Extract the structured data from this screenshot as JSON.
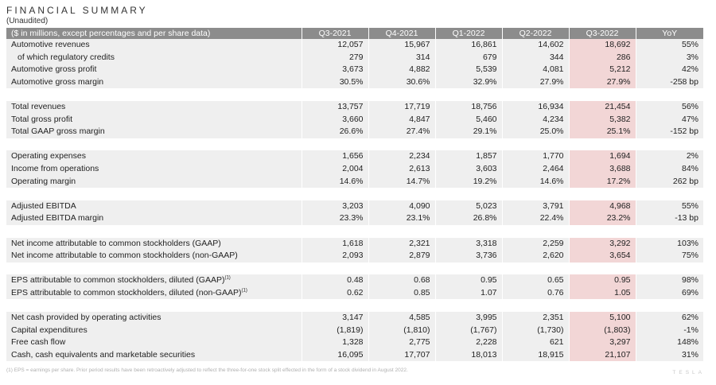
{
  "header": {
    "title": "FINANCIAL SUMMARY",
    "subtitle": "(Unaudited)"
  },
  "table": {
    "columns": [
      "($ in millions, except percentages and per share data)",
      "Q3-2021",
      "Q4-2021",
      "Q1-2022",
      "Q2-2022",
      "Q3-2022",
      "YoY"
    ],
    "highlight_color": "#f2d6d6",
    "groups": [
      [
        {
          "label": "Automotive revenues",
          "indent": false,
          "values": [
            "12,057",
            "15,967",
            "16,861",
            "14,602",
            "18,692",
            "55%"
          ]
        },
        {
          "label": "of which regulatory credits",
          "indent": true,
          "values": [
            "279",
            "314",
            "679",
            "344",
            "286",
            "3%"
          ]
        },
        {
          "label": "Automotive gross profit",
          "indent": false,
          "values": [
            "3,673",
            "4,882",
            "5,539",
            "4,081",
            "5,212",
            "42%"
          ]
        },
        {
          "label": "Automotive gross margin",
          "indent": false,
          "values": [
            "30.5%",
            "30.6%",
            "32.9%",
            "27.9%",
            "27.9%",
            "-258 bp"
          ]
        }
      ],
      [
        {
          "label": "Total revenues",
          "indent": false,
          "values": [
            "13,757",
            "17,719",
            "18,756",
            "16,934",
            "21,454",
            "56%"
          ]
        },
        {
          "label": "Total gross profit",
          "indent": false,
          "values": [
            "3,660",
            "4,847",
            "5,460",
            "4,234",
            "5,382",
            "47%"
          ]
        },
        {
          "label": "Total GAAP gross margin",
          "indent": false,
          "values": [
            "26.6%",
            "27.4%",
            "29.1%",
            "25.0%",
            "25.1%",
            "-152 bp"
          ]
        }
      ],
      [
        {
          "label": "Operating expenses",
          "indent": false,
          "values": [
            "1,656",
            "2,234",
            "1,857",
            "1,770",
            "1,694",
            "2%"
          ]
        },
        {
          "label": "Income from operations",
          "indent": false,
          "values": [
            "2,004",
            "2,613",
            "3,603",
            "2,464",
            "3,688",
            "84%"
          ]
        },
        {
          "label": "Operating margin",
          "indent": false,
          "values": [
            "14.6%",
            "14.7%",
            "19.2%",
            "14.6%",
            "17.2%",
            "262 bp"
          ]
        }
      ],
      [
        {
          "label": "Adjusted EBITDA",
          "indent": false,
          "values": [
            "3,203",
            "4,090",
            "5,023",
            "3,791",
            "4,968",
            "55%"
          ]
        },
        {
          "label": "Adjusted EBITDA margin",
          "indent": false,
          "values": [
            "23.3%",
            "23.1%",
            "26.8%",
            "22.4%",
            "23.2%",
            "-13 bp"
          ]
        }
      ],
      [
        {
          "label": "Net income attributable to common stockholders (GAAP)",
          "indent": false,
          "values": [
            "1,618",
            "2,321",
            "3,318",
            "2,259",
            "3,292",
            "103%"
          ]
        },
        {
          "label": "Net income attributable to common stockholders (non-GAAP)",
          "indent": false,
          "values": [
            "2,093",
            "2,879",
            "3,736",
            "2,620",
            "3,654",
            "75%"
          ]
        }
      ],
      [
        {
          "label": "EPS attributable to common stockholders, diluted (GAAP)",
          "sup": "(1)",
          "indent": false,
          "values": [
            "0.48",
            "0.68",
            "0.95",
            "0.65",
            "0.95",
            "98%"
          ]
        },
        {
          "label": "EPS attributable to common stockholders, diluted (non-GAAP)",
          "sup": "(1)",
          "indent": false,
          "values": [
            "0.62",
            "0.85",
            "1.07",
            "0.76",
            "1.05",
            "69%"
          ]
        }
      ],
      [
        {
          "label": "Net cash provided by operating activities",
          "indent": false,
          "values": [
            "3,147",
            "4,585",
            "3,995",
            "2,351",
            "5,100",
            "62%"
          ]
        },
        {
          "label": "Capital expenditures",
          "indent": false,
          "values": [
            "(1,819)",
            "(1,810)",
            "(1,767)",
            "(1,730)",
            "(1,803)",
            "-1%"
          ]
        },
        {
          "label": "Free cash flow",
          "indent": false,
          "values": [
            "1,328",
            "2,775",
            "2,228",
            "621",
            "3,297",
            "148%"
          ]
        },
        {
          "label": "Cash, cash equivalents and marketable securities",
          "indent": false,
          "values": [
            "16,095",
            "17,707",
            "18,013",
            "18,915",
            "21,107",
            "31%"
          ]
        }
      ]
    ]
  },
  "footnote": "(1) EPS = earnings per share. Prior period results have been retroactively adjusted to reflect the three-for-one stock split effected in the form of a stock dividend in August 2022.",
  "brand": "TESLA"
}
